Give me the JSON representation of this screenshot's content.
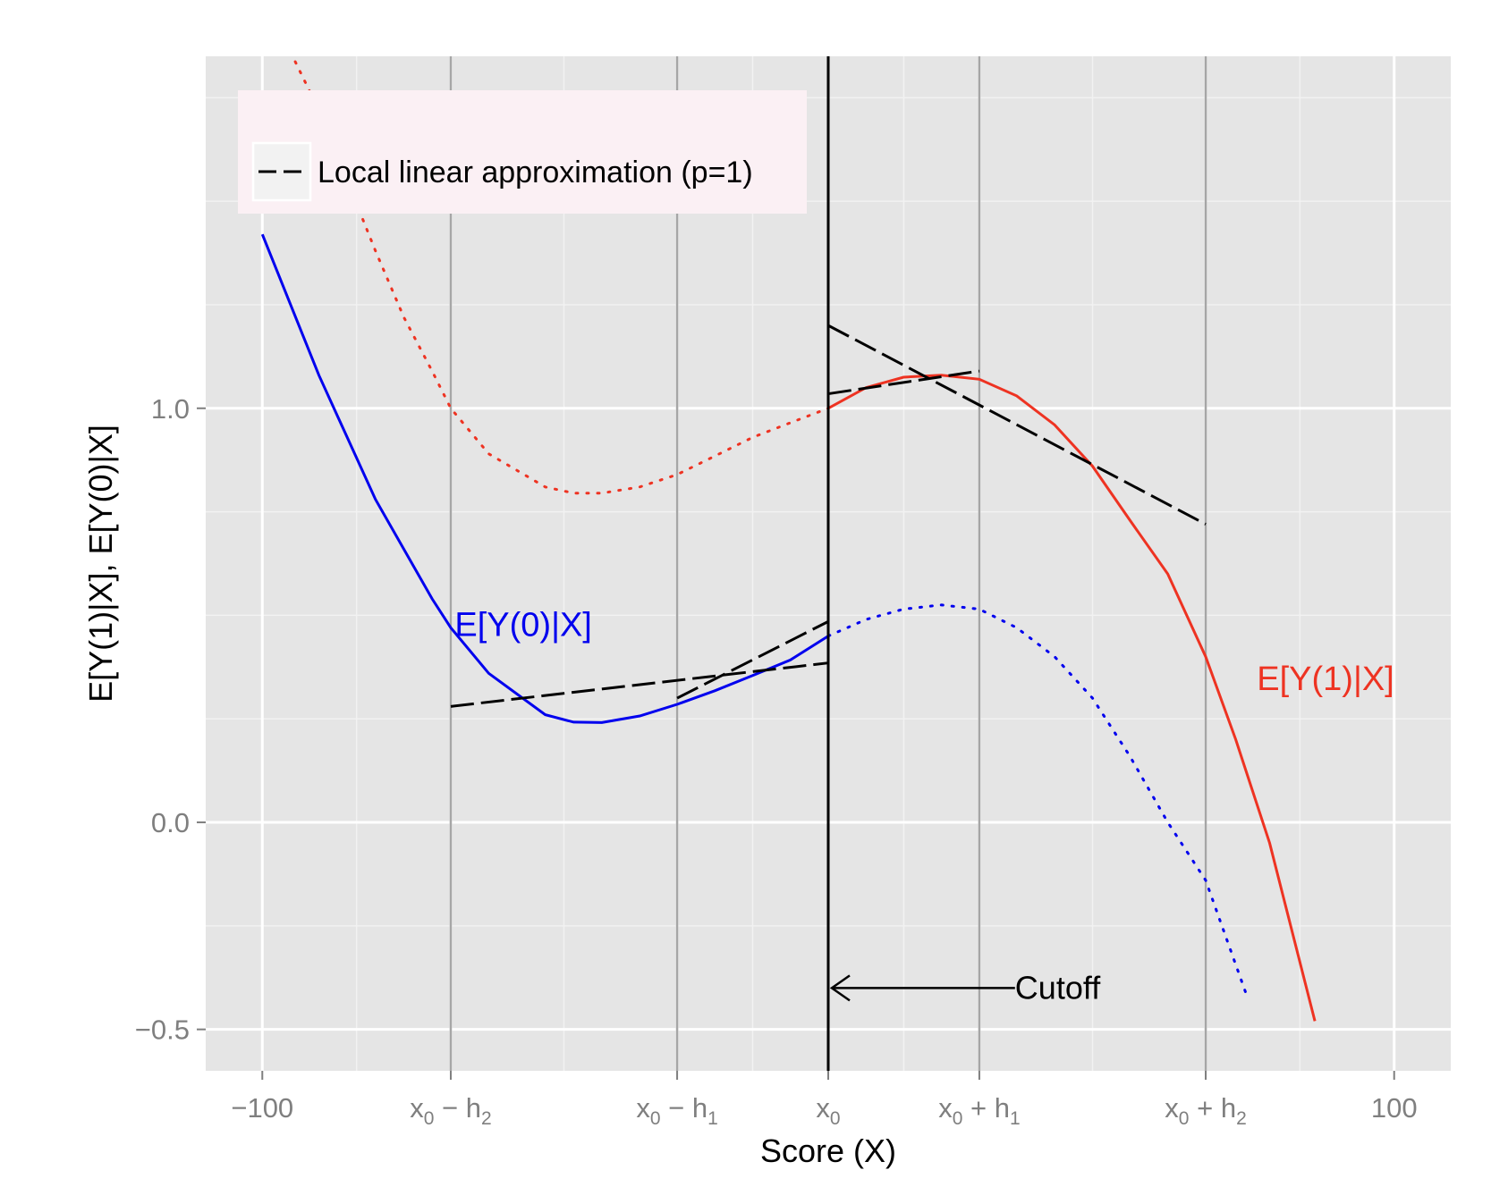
{
  "chart_data": {
    "type": "line",
    "xlabel": "Score (X)",
    "ylabel": "E[Y(1)|X], E[Y(0)|X]",
    "xlim": [
      -110,
      110
    ],
    "ylim": [
      -0.6,
      1.85
    ],
    "grid": true,
    "legend_position": "top-left",
    "legend": [
      {
        "name": "Local linear approximation (p=1)",
        "style": "dashed",
        "color": "#000000"
      }
    ],
    "x_ticks": [
      {
        "value": -100,
        "label": "−100",
        "base": "",
        "sub": ""
      },
      {
        "value": -66.7,
        "label": "",
        "base": "x",
        "sub": "0",
        "op": "−",
        "h": "h",
        "hsub": "2"
      },
      {
        "value": -26.7,
        "label": "",
        "base": "x",
        "sub": "0",
        "op": "−",
        "h": "h",
        "hsub": "1"
      },
      {
        "value": 0,
        "label": "",
        "base": "x",
        "sub": "0"
      },
      {
        "value": 26.7,
        "label": "",
        "base": "x",
        "sub": "0",
        "op": "+",
        "h": "h",
        "hsub": "1"
      },
      {
        "value": 66.7,
        "label": "",
        "base": "x",
        "sub": "0",
        "op": "+",
        "h": "h",
        "hsub": "2"
      },
      {
        "value": 100,
        "label": "100",
        "base": "",
        "sub": ""
      }
    ],
    "y_ticks": [
      {
        "value": 1.0,
        "label": "1.0"
      },
      {
        "value": 0.0,
        "label": "0.0"
      },
      {
        "value": -0.5,
        "label": "−0.5"
      }
    ],
    "y_minor": [
      -0.25,
      0.25,
      0.5,
      0.75,
      1.25,
      1.5,
      1.75
    ],
    "series": [
      {
        "name": "E[Y(0)|X]",
        "color": "#0000ee",
        "x": [
          -100,
          -90,
          -80,
          -70,
          -66.7,
          -60,
          -50,
          -45,
          -40,
          -33.3,
          -26.7,
          -20,
          -13.3,
          -6.7,
          0,
          6.7,
          13.3,
          20,
          26.7,
          33.3,
          40,
          46.7,
          53.3,
          60,
          66.7,
          74
        ],
        "y": [
          1.42,
          1.08,
          0.78,
          0.54,
          0.47,
          0.36,
          0.26,
          0.242,
          0.241,
          0.257,
          0.285,
          0.318,
          0.355,
          0.392,
          0.45,
          0.49,
          0.515,
          0.525,
          0.515,
          0.47,
          0.4,
          0.3,
          0.16,
          0.0,
          -0.14,
          -0.42
        ],
        "solid_range": [
          -100,
          0
        ],
        "label_at": {
          "x": -66,
          "y": 0.45
        }
      },
      {
        "name": "E[Y(1)|X]",
        "color": "#ee3322",
        "x": [
          -100,
          -90,
          -80,
          -75,
          -70,
          -66.7,
          -60,
          -50,
          -45,
          -40,
          -33.3,
          -26.7,
          -20,
          -13.3,
          -6.7,
          0,
          6.7,
          13.3,
          20,
          26.7,
          33.3,
          40,
          46.7,
          53.3,
          60,
          66.7,
          72,
          78,
          86
        ],
        "y": [
          2.0,
          1.72,
          1.38,
          1.22,
          1.09,
          1.0,
          0.89,
          0.81,
          0.795,
          0.795,
          0.81,
          0.84,
          0.885,
          0.93,
          0.965,
          1.0,
          1.05,
          1.075,
          1.08,
          1.07,
          1.03,
          0.96,
          0.86,
          0.73,
          0.6,
          0.4,
          0.2,
          -0.05,
          -0.48
        ],
        "solid_range": [
          0,
          86
        ],
        "label_at": {
          "x": 100,
          "y": 0.32
        }
      }
    ],
    "local_linear_lines": [
      {
        "x": [
          -66.7,
          0
        ],
        "y": [
          0.28,
          0.385
        ]
      },
      {
        "x": [
          -26.7,
          0
        ],
        "y": [
          0.3,
          0.485
        ]
      },
      {
        "x": [
          0,
          66.7
        ],
        "y": [
          1.2,
          0.72
        ]
      },
      {
        "x": [
          0,
          26.7
        ],
        "y": [
          1.035,
          1.09
        ]
      }
    ],
    "vertical_lines": [
      -66.7,
      -26.7,
      26.7,
      66.7
    ],
    "cutoff": {
      "x": 0,
      "label": "Cutoff",
      "label_x": 33,
      "y": -0.4
    }
  }
}
